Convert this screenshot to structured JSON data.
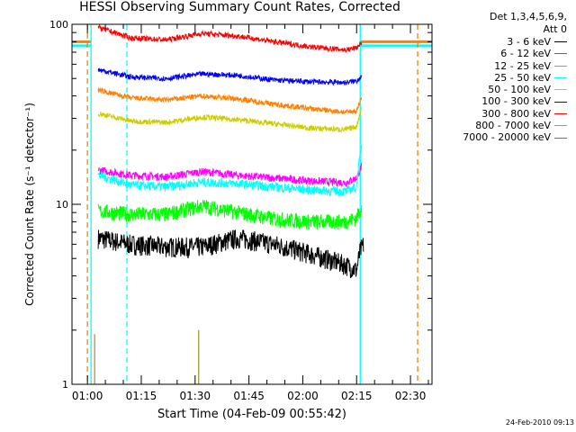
{
  "chart_data": {
    "type": "line",
    "title": "HESSI Observing Summary Count Rates, Corrected",
    "xlabel": "Start Time (04-Feb-09 00:55:42)",
    "ylabel": "Corrected Count Rate (s⁻¹ detector⁻¹)",
    "y_scale": "log",
    "ylim": [
      1,
      100
    ],
    "y_ticks": [
      1,
      10,
      100
    ],
    "y_tick_labels": [
      "1",
      "10",
      "100"
    ],
    "x_range": [
      "00:55:42",
      "02:36:00"
    ],
    "x_ticks": [
      "01:00",
      "01:15",
      "01:30",
      "01:45",
      "02:00",
      "02:15",
      "02:30"
    ],
    "legend_placement": "right, outside plot",
    "legend_header": [
      "Det 1,3,4,5,6,9,",
      "Att 0"
    ],
    "grid": false,
    "data_window": [
      "01:02",
      "02:15"
    ],
    "vertical_lines": [
      {
        "time": "01:01",
        "color": "#00ffff",
        "style": "solid"
      },
      {
        "time": "02:16",
        "color": "#00ffff",
        "style": "solid"
      },
      {
        "time": "01:11",
        "color": "#00ffff",
        "style": "dashed"
      },
      {
        "time": "01:00",
        "color": "#ff8000",
        "style": "dashed"
      },
      {
        "time": "02:32",
        "color": "#ff8000",
        "style": "dashed"
      }
    ],
    "horizontal_bands": [
      {
        "color": "#ff8000",
        "value": 80,
        "from": "00:55:42",
        "to": "01:01"
      },
      {
        "color": "#00ffff",
        "value": 76,
        "from": "00:55:42",
        "to": "01:01"
      },
      {
        "color": "#ff8000",
        "value": 80,
        "from": "02:16",
        "to": "02:36:00"
      },
      {
        "color": "#00ffff",
        "value": 76,
        "from": "02:16",
        "to": "02:36:00"
      }
    ],
    "series": [
      {
        "name": "3 - 6 keV",
        "color": "#000000",
        "values": [
          [
            1.0,
            6.5
          ],
          [
            10.0,
            6.0
          ],
          [
            20.0,
            5.8
          ],
          [
            30.0,
            5.8
          ],
          [
            40.0,
            6.5
          ],
          [
            50.0,
            6.0
          ],
          [
            60.0,
            5.3
          ],
          [
            70.0,
            4.6
          ],
          [
            73.0,
            4.3
          ],
          [
            74.0,
            5.5
          ],
          [
            75.0,
            6.0
          ]
        ]
      },
      {
        "name": "6 - 12 keV",
        "color": "#ff00ff",
        "values": [
          [
            1.0,
            15.5
          ],
          [
            10.0,
            14.5
          ],
          [
            20.0,
            14.2
          ],
          [
            30.0,
            15.2
          ],
          [
            40.0,
            14.5
          ],
          [
            50.0,
            14.0
          ],
          [
            60.0,
            13.5
          ],
          [
            70.0,
            13.2
          ],
          [
            73.0,
            14.0
          ],
          [
            74.5,
            16.5
          ]
        ]
      },
      {
        "name": "12 - 25 keV",
        "color": "#00ff00",
        "values": [
          [
            1.0,
            9.2
          ],
          [
            10.0,
            8.8
          ],
          [
            20.0,
            8.8
          ],
          [
            30.0,
            9.8
          ],
          [
            40.0,
            9.0
          ],
          [
            50.0,
            8.3
          ],
          [
            60.0,
            8.0
          ],
          [
            70.0,
            8.0
          ],
          [
            73.0,
            8.4
          ],
          [
            74.5,
            9.8
          ]
        ]
      },
      {
        "name": "25 - 50 keV",
        "color": "#00ffff",
        "values": [
          [
            1.0,
            14.5
          ],
          [
            10.0,
            12.8
          ],
          [
            20.0,
            12.5
          ],
          [
            30.0,
            13.3
          ],
          [
            40.0,
            13.0
          ],
          [
            50.0,
            12.5
          ],
          [
            60.0,
            12.0
          ],
          [
            70.0,
            11.8
          ],
          [
            73.0,
            12.5
          ],
          [
            74.5,
            22.0
          ]
        ]
      },
      {
        "name": "50 - 100 keV",
        "color": "#cccc00",
        "values": [
          [
            1.0,
            32.0
          ],
          [
            10.0,
            29.0
          ],
          [
            20.0,
            28.5
          ],
          [
            30.0,
            30.5
          ],
          [
            40.0,
            29.5
          ],
          [
            50.0,
            28.0
          ],
          [
            60.0,
            26.5
          ],
          [
            70.0,
            26.0
          ],
          [
            73.0,
            27.0
          ],
          [
            74.5,
            35.0
          ]
        ]
      },
      {
        "name": "100 - 300 keV",
        "color": "#0000ff",
        "values": [
          [
            1.0,
            56.0
          ],
          [
            10.0,
            51.0
          ],
          [
            20.0,
            50.0
          ],
          [
            30.0,
            53.0
          ],
          [
            40.0,
            52.0
          ],
          [
            50.0,
            49.0
          ],
          [
            60.0,
            48.0
          ],
          [
            70.0,
            47.5
          ],
          [
            73.0,
            48.5
          ],
          [
            74.5,
            52.0
          ]
        ]
      },
      {
        "name": "300 - 800 keV",
        "color": "#ff0000",
        "values": [
          [
            1.0,
            96.0
          ],
          [
            10.0,
            84.0
          ],
          [
            20.0,
            82.0
          ],
          [
            30.0,
            89.0
          ],
          [
            40.0,
            86.0
          ],
          [
            50.0,
            80.0
          ],
          [
            60.0,
            75.0
          ],
          [
            70.0,
            72.0
          ],
          [
            73.0,
            74.0
          ],
          [
            74.5,
            80.0
          ]
        ]
      },
      {
        "name": "800 - 7000 keV",
        "color": "#ff8000",
        "values": [
          [
            1.0,
            43.0
          ],
          [
            10.0,
            39.0
          ],
          [
            20.0,
            38.0
          ],
          [
            30.0,
            40.0
          ],
          [
            40.0,
            38.5
          ],
          [
            50.0,
            36.0
          ],
          [
            60.0,
            34.0
          ],
          [
            70.0,
            32.5
          ],
          [
            73.0,
            33.0
          ],
          [
            74.5,
            40.0
          ]
        ]
      },
      {
        "name": "7000 - 20000 keV",
        "color": "#808000",
        "values": [
          [
            0.0,
            1.0
          ]
        ]
      }
    ]
  },
  "footer": {
    "timestamp": "24-Feb-2010 09:13"
  }
}
